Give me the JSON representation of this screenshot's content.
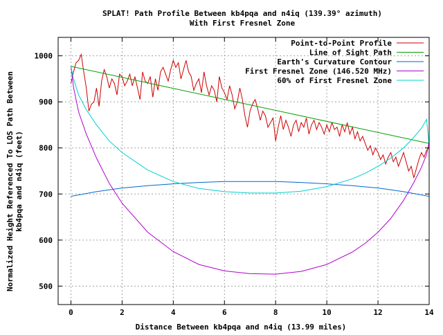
{
  "chart_data": {
    "type": "line",
    "title_line1": "SPLAT! Path Profile Between kb4pqa and n4iq (139.39° azimuth)",
    "title_line2": "With First Fresnel Zone",
    "xlabel": "Distance Between kb4pqa and n4iq (13.99 miles)",
    "ylabel_line1": "Normalized Height Referenced To LOS Path Between",
    "ylabel_line2": "kb4pqa and n4iq (feet)",
    "xlim": [
      -0.5,
      14
    ],
    "ylim": [
      460,
      1040
    ],
    "grid": true,
    "legend_position": "top-right",
    "x_ticks": [
      {
        "value": 0,
        "label": "0"
      },
      {
        "value": 2,
        "label": "2"
      },
      {
        "value": 4,
        "label": "4"
      },
      {
        "value": 6,
        "label": "6"
      },
      {
        "value": 8,
        "label": "8"
      },
      {
        "value": 10,
        "label": "10"
      },
      {
        "value": 12,
        "label": "12"
      },
      {
        "value": 14,
        "label": "14"
      }
    ],
    "y_ticks": [
      {
        "value": 500,
        "label": "500"
      },
      {
        "value": 600,
        "label": "600"
      },
      {
        "value": 700,
        "label": "700"
      },
      {
        "value": 800,
        "label": "800"
      },
      {
        "value": 900,
        "label": "900"
      },
      {
        "value": 1000,
        "label": "1000"
      }
    ],
    "series": [
      {
        "name": "Point-to-Point Profile",
        "color": "#cc0000",
        "x": [
          0,
          0.1,
          0.2,
          0.3,
          0.4,
          0.5,
          0.6,
          0.7,
          0.8,
          0.9,
          1.0,
          1.1,
          1.2,
          1.3,
          1.4,
          1.5,
          1.6,
          1.7,
          1.8,
          1.9,
          2.0,
          2.1,
          2.2,
          2.3,
          2.4,
          2.5,
          2.6,
          2.7,
          2.8,
          2.9,
          3.0,
          3.1,
          3.2,
          3.3,
          3.4,
          3.5,
          3.6,
          3.7,
          3.8,
          3.9,
          4.0,
          4.1,
          4.2,
          4.3,
          4.4,
          4.5,
          4.6,
          4.7,
          4.8,
          4.9,
          5.0,
          5.1,
          5.2,
          5.3,
          5.4,
          5.5,
          5.6,
          5.7,
          5.8,
          5.9,
          6.0,
          6.1,
          6.2,
          6.3,
          6.4,
          6.5,
          6.6,
          6.7,
          6.8,
          6.9,
          7.0,
          7.1,
          7.2,
          7.3,
          7.4,
          7.5,
          7.6,
          7.7,
          7.8,
          7.9,
          8.0,
          8.1,
          8.2,
          8.3,
          8.4,
          8.5,
          8.6,
          8.7,
          8.8,
          8.9,
          9.0,
          9.1,
          9.2,
          9.3,
          9.4,
          9.5,
          9.6,
          9.7,
          9.8,
          9.9,
          10.0,
          10.1,
          10.2,
          10.3,
          10.4,
          10.5,
          10.6,
          10.7,
          10.8,
          10.9,
          11.0,
          11.1,
          11.2,
          11.3,
          11.4,
          11.5,
          11.6,
          11.7,
          11.8,
          11.9,
          12.0,
          12.1,
          12.2,
          12.3,
          12.4,
          12.5,
          12.6,
          12.7,
          12.8,
          12.9,
          13.0,
          13.1,
          13.2,
          13.3,
          13.4,
          13.5,
          13.6,
          13.7,
          13.8,
          13.9,
          13.99
        ],
        "values": [
          940,
          965,
          985,
          990,
          1003,
          965,
          930,
          880,
          895,
          900,
          930,
          890,
          945,
          970,
          955,
          930,
          950,
          940,
          915,
          960,
          955,
          935,
          945,
          960,
          935,
          955,
          930,
          905,
          965,
          945,
          940,
          955,
          910,
          950,
          925,
          965,
          975,
          960,
          945,
          970,
          990,
          975,
          985,
          950,
          970,
          990,
          965,
          955,
          925,
          940,
          950,
          920,
          965,
          935,
          915,
          935,
          925,
          900,
          955,
          930,
          920,
          905,
          935,
          915,
          885,
          900,
          930,
          905,
          870,
          845,
          880,
          895,
          905,
          885,
          860,
          880,
          870,
          845,
          855,
          865,
          815,
          845,
          870,
          840,
          860,
          845,
          825,
          850,
          860,
          835,
          855,
          845,
          865,
          830,
          850,
          860,
          840,
          855,
          845,
          830,
          850,
          835,
          855,
          840,
          845,
          825,
          850,
          835,
          855,
          830,
          845,
          820,
          835,
          815,
          825,
          810,
          795,
          805,
          785,
          800,
          790,
          775,
          785,
          765,
          780,
          790,
          770,
          780,
          760,
          775,
          790,
          770,
          750,
          760,
          735,
          755,
          775,
          790,
          780,
          795,
          800
        ]
      },
      {
        "name": "Line of Sight Path",
        "color": "#00a000",
        "x": [
          0,
          13.99
        ],
        "values": [
          977,
          810
        ]
      },
      {
        "name": "Earth's Curvature Contour",
        "color": "#0066cc",
        "x": [
          0,
          1,
          2,
          3,
          4,
          5,
          6,
          7,
          8,
          9,
          10,
          11,
          12,
          13,
          13.99
        ],
        "values": [
          695,
          705,
          713,
          718,
          722,
          725,
          727,
          727,
          727,
          725,
          722,
          718,
          713,
          705,
          695
        ]
      },
      {
        "name": "First Fresnel Zone (146.520 MHz)",
        "color": "#b000d0",
        "x": [
          0,
          0.1,
          0.3,
          0.6,
          1,
          1.5,
          2,
          3,
          4,
          5,
          6,
          7,
          8,
          9,
          10,
          11,
          11.5,
          12,
          12.5,
          13,
          13.4,
          13.7,
          13.9,
          13.99
        ],
        "values": [
          977,
          932,
          878,
          830,
          778,
          723,
          680,
          617,
          575,
          547,
          533,
          527,
          526,
          532,
          547,
          574,
          593,
          617,
          647,
          686,
          725,
          758,
          786,
          810
        ]
      },
      {
        "name": "60% of First Fresnel Zone",
        "color": "#00d0d0",
        "x": [
          0,
          0.1,
          0.3,
          0.6,
          1,
          1.5,
          2,
          3,
          4,
          5,
          6,
          7,
          8,
          9,
          10,
          11,
          11.5,
          12,
          12.5,
          13,
          13.4,
          13.7,
          13.9,
          13.99
        ],
        "values": [
          977,
          950,
          915,
          883,
          850,
          815,
          790,
          752,
          727,
          712,
          705,
          702,
          702,
          706,
          716,
          733,
          745,
          760,
          778,
          800,
          823,
          843,
          862,
          810
        ]
      }
    ]
  }
}
